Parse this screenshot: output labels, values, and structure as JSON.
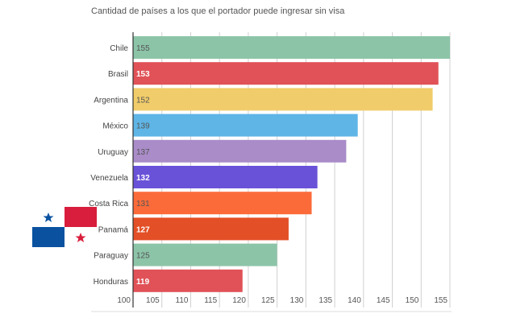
{
  "chart_data": {
    "type": "bar",
    "orientation": "horizontal",
    "title": "Cantidad de países a los que el portador puede ingresar sin visa",
    "xlabel": "",
    "ylabel": "",
    "xlim": [
      100,
      155
    ],
    "grid": true,
    "ticks": [
      "100",
      "105",
      "110",
      "115",
      "120",
      "125",
      "130",
      "135",
      "140",
      "145",
      "150",
      "155"
    ],
    "tick_values": [
      100,
      105,
      110,
      115,
      120,
      125,
      130,
      135,
      140,
      145,
      150,
      155
    ],
    "categories": [
      "Chile",
      "Brasil",
      "Argentina",
      "México",
      "Uruguay",
      "Venezuela",
      "Costa Rica",
      "Panamá",
      "Paraguay",
      "Honduras"
    ],
    "values": [
      155,
      153,
      152,
      139,
      137,
      132,
      131,
      127,
      125,
      119
    ],
    "colors": [
      "#8cc4a8",
      "#e05257",
      "#f0cc6a",
      "#5fb5e6",
      "#a98cc8",
      "#6a52d8",
      "#fb6b3a",
      "#e34f26",
      "#8cc4a8",
      "#e05257"
    ],
    "label_colors": [
      "#555555",
      "#ffffff",
      "#555555",
      "#555555",
      "#555555",
      "#ffffff",
      "#555555",
      "#ffffff",
      "#555555",
      "#ffffff"
    ]
  },
  "decoration": {
    "flag": "panama-flag",
    "flag_colors": {
      "blue": "#0a52a0",
      "red": "#d81e3c"
    }
  }
}
